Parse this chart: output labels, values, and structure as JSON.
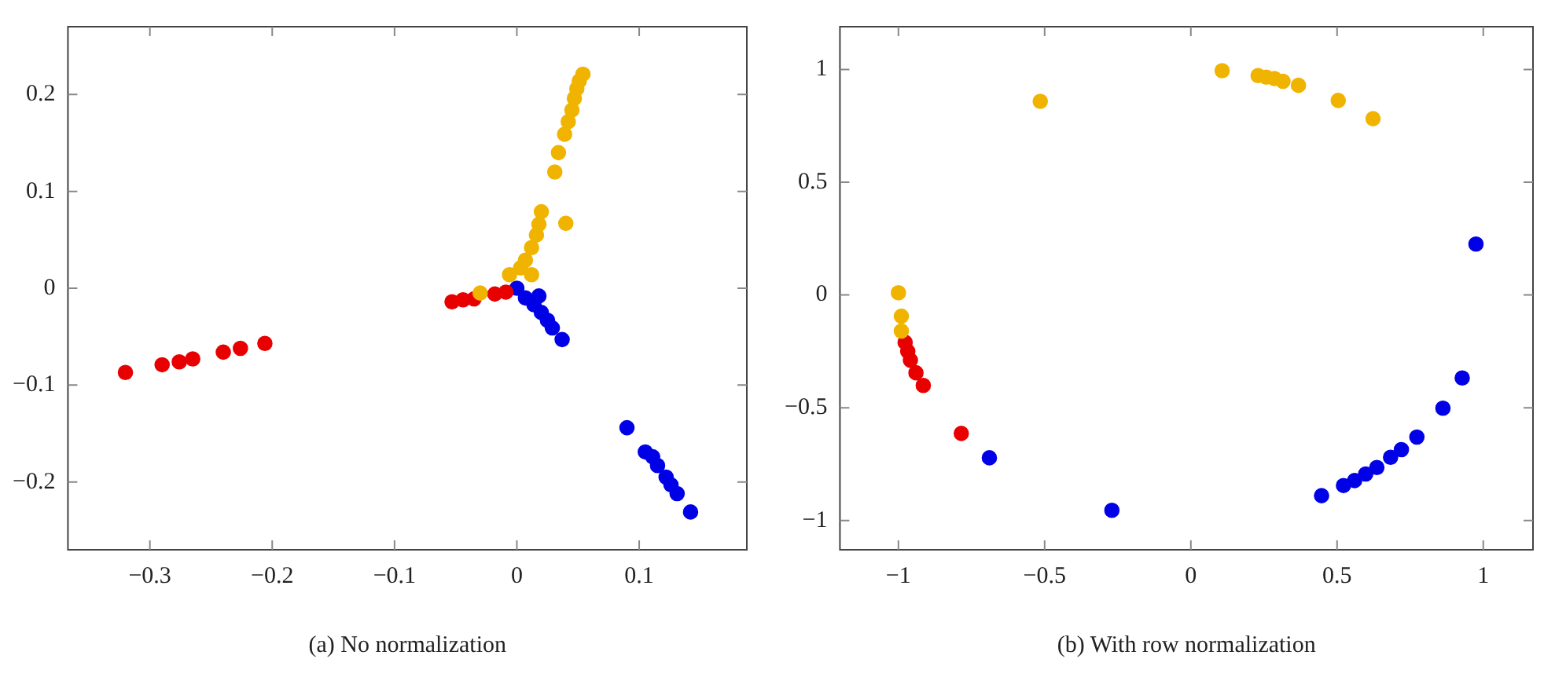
{
  "chart_data": [
    {
      "type": "scatter",
      "xlabel": "(a) No normalization",
      "xlim": [
        -0.367,
        0.188
      ],
      "ylim": [
        -0.27,
        0.27
      ],
      "xticks": [
        {
          "value": -0.3,
          "label": "−0.3"
        },
        {
          "value": -0.2,
          "label": "−0.2"
        },
        {
          "value": -0.1,
          "label": "−0.1"
        },
        0,
        0.1
      ],
      "yticks": [
        {
          "value": -0.2,
          "label": "−0.2"
        },
        {
          "value": -0.1,
          "label": "−0.1"
        },
        0,
        0.1,
        0.2
      ],
      "grid": false,
      "legend": false,
      "marker": "circle",
      "series": [
        {
          "color": "#f0b400",
          "x": [
            -0.006,
            0.003,
            0.012,
            0.007,
            0.012,
            0.016,
            0.018,
            0.02,
            0.04,
            0.031,
            0.034,
            0.039,
            0.042,
            0.045,
            0.047,
            0.049,
            0.051,
            0.054,
            -0.03
          ],
          "values": [
            0.014,
            0.021,
            0.014,
            0.029,
            0.042,
            0.055,
            0.066,
            0.079,
            0.067,
            0.12,
            0.14,
            0.159,
            0.172,
            0.184,
            0.196,
            0.206,
            0.214,
            0.221,
            -0.005
          ]
        },
        {
          "color": "#e80000",
          "x": [
            -0.32,
            -0.29,
            -0.276,
            -0.265,
            -0.24,
            -0.226,
            -0.206,
            -0.053,
            -0.044,
            -0.035,
            -0.018,
            -0.009
          ],
          "values": [
            -0.087,
            -0.079,
            -0.076,
            -0.073,
            -0.066,
            -0.062,
            -0.057,
            -0.014,
            -0.012,
            -0.011,
            -0.006,
            -0.004
          ]
        },
        {
          "color": "#0000e6",
          "x": [
            0,
            0.007,
            0.018,
            0.014,
            0.02,
            0.025,
            0.029,
            0.037,
            0.09,
            0.105,
            0.111,
            0.115,
            0.122,
            0.126,
            0.131,
            0.142
          ],
          "values": [
            0,
            -0.01,
            -0.008,
            -0.017,
            -0.025,
            -0.033,
            -0.041,
            -0.053,
            -0.144,
            -0.169,
            -0.174,
            -0.183,
            -0.195,
            -0.203,
            -0.212,
            -0.231
          ]
        }
      ]
    },
    {
      "type": "scatter",
      "xlabel": "(b) With row normalization",
      "xlim": [
        -1.2,
        1.17
      ],
      "ylim": [
        -1.13,
        1.19
      ],
      "xticks": [
        {
          "value": -1,
          "label": "−1"
        },
        {
          "value": -0.5,
          "label": "−0.5"
        },
        0,
        0.5,
        1
      ],
      "yticks": [
        {
          "value": -1,
          "label": "−1"
        },
        {
          "value": -0.5,
          "label": "−0.5"
        },
        0,
        0.5,
        1
      ],
      "grid": false,
      "legend": false,
      "marker": "circle",
      "series": [
        {
          "color": "#f0b400",
          "x": [
            -1.0,
            -0.99,
            -0.99,
            -0.515,
            0.107,
            0.23,
            0.258,
            0.286,
            0.315,
            0.368,
            0.504,
            0.623
          ],
          "values": [
            0.01,
            -0.094,
            -0.16,
            0.859,
            0.995,
            0.973,
            0.966,
            0.96,
            0.948,
            0.93,
            0.863,
            0.782
          ]
        },
        {
          "color": "#e80000",
          "x": [
            -0.977,
            -0.968,
            -0.959,
            -0.94,
            -0.915,
            -0.785
          ],
          "values": [
            -0.21,
            -0.25,
            -0.289,
            -0.345,
            -0.401,
            -0.614
          ]
        },
        {
          "color": "#0000e6",
          "x": [
            0.975,
            0.928,
            0.862,
            0.773,
            -0.689,
            -0.27,
            0.447,
            0.522,
            0.56,
            0.598,
            0.636,
            0.683,
            0.72
          ],
          "values": [
            0.226,
            -0.368,
            -0.502,
            -0.63,
            -0.722,
            -0.955,
            -0.89,
            -0.845,
            -0.823,
            -0.794,
            -0.765,
            -0.72,
            -0.686
          ]
        }
      ]
    }
  ]
}
